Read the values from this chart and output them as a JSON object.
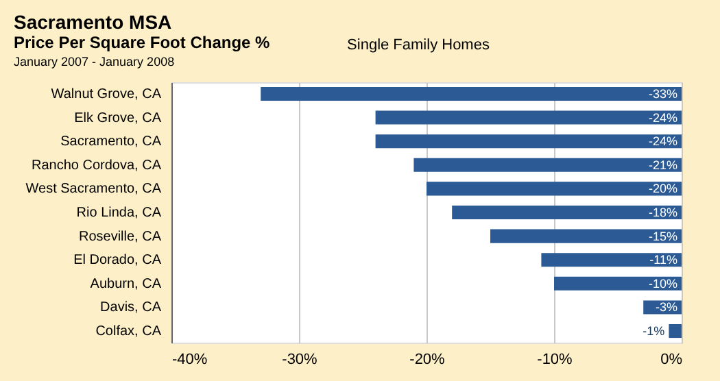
{
  "chart_data": {
    "type": "bar",
    "orientation": "horizontal",
    "title": "Sacramento MSA",
    "subtitle": "Price Per Square Foot Change %",
    "annotations": [
      "January 2007 - January 2008",
      "Single Family Homes"
    ],
    "categories": [
      "Walnut Grove, CA",
      "Elk Grove, CA",
      "Sacramento, CA",
      "Rancho Cordova, CA",
      "West Sacramento, CA",
      "Rio Linda, CA",
      "Roseville, CA",
      "El Dorado, CA",
      "Auburn, CA",
      "Davis, CA",
      "Colfax, CA"
    ],
    "values": [
      -33,
      -24,
      -24,
      -21,
      -20,
      -18,
      -15,
      -11,
      -10,
      -3,
      -1
    ],
    "value_labels": [
      "-33%",
      "-24%",
      "-24%",
      "-21%",
      "-20%",
      "-18%",
      "-15%",
      "-11%",
      "-10%",
      "-3%",
      "-1%"
    ],
    "color": "#2b5a94",
    "xlim": [
      -40,
      0
    ],
    "xticks": [
      {
        "value": -40,
        "label": "-40%"
      },
      {
        "value": -30,
        "label": "-30%"
      },
      {
        "value": -20,
        "label": "-20%"
      },
      {
        "value": -10,
        "label": "-10%"
      },
      {
        "value": 0,
        "label": "0%"
      }
    ],
    "grid": "x"
  }
}
